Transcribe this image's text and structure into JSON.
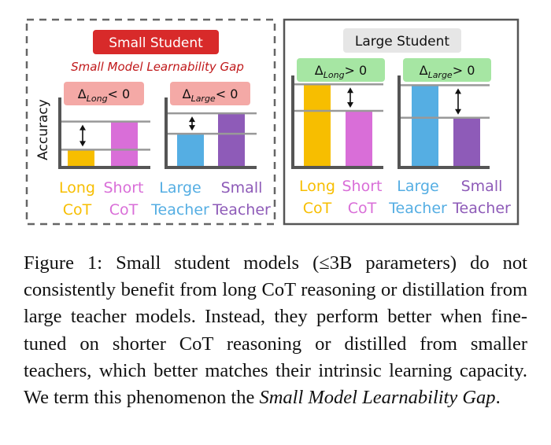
{
  "chart_data": [
    {
      "type": "bar",
      "title": "Small Student",
      "subtitle": "Small Model Learnability Gap",
      "ylabel": "Accuracy",
      "axis_label_unit": "",
      "groups": [
        {
          "delta_symbol": "Δ",
          "delta_sub": "Long",
          "delta_rel": "< 0",
          "categories": [
            [
              "Long",
              "CoT"
            ],
            [
              "Short",
              "CoT"
            ]
          ],
          "values": [
            0.28,
            0.72
          ],
          "colors": [
            "#f7be00",
            "#d96ed8"
          ]
        },
        {
          "delta_symbol": "Δ",
          "delta_sub": "Large",
          "delta_rel": "< 0",
          "categories": [
            [
              "Large",
              "Teacher"
            ],
            [
              "Small",
              "Teacher"
            ]
          ],
          "values": [
            0.53,
            0.85
          ],
          "colors": [
            "#55aee3",
            "#8e5bb8"
          ]
        }
      ]
    },
    {
      "type": "bar",
      "title": "Large Student",
      "ylabel": "",
      "groups": [
        {
          "delta_symbol": "Δ",
          "delta_sub": "Long",
          "delta_rel": "> 0",
          "categories": [
            [
              "Long",
              "CoT"
            ],
            [
              "Short",
              "CoT"
            ]
          ],
          "values": [
            0.97,
            0.66
          ],
          "colors": [
            "#f7be00",
            "#d96ed8"
          ]
        },
        {
          "delta_symbol": "Δ",
          "delta_sub": "Large",
          "delta_rel": "> 0",
          "categories": [
            [
              "Large",
              "Teacher"
            ],
            [
              "Small",
              "Teacher"
            ]
          ],
          "values": [
            0.96,
            0.58
          ],
          "colors": [
            "#55aee3",
            "#8e5bb8"
          ]
        }
      ]
    }
  ],
  "caption": {
    "prefix": "Figure 1: Small student models (≤3B parameters) do not consistently benefit from long CoT reasoning or distillation from large teacher models.  Instead, they perform better when fine-tuned on shorter CoT reasoning or distilled from smaller teachers, which better matches their intrinsic learning capacity. We term this phenomenon the ",
    "emphasis": "Small Model Learnability Gap",
    "suffix": "."
  },
  "colors": {
    "small_title_bg": "#d82a2a",
    "subtitle_text": "#c0191b",
    "delta_negative_bg": "#f4a9a6",
    "delta_positive_bg": "#a6e6a3",
    "large_title_bg": "#e6e6e6",
    "axis": "#555555",
    "gridline": "#999999"
  }
}
